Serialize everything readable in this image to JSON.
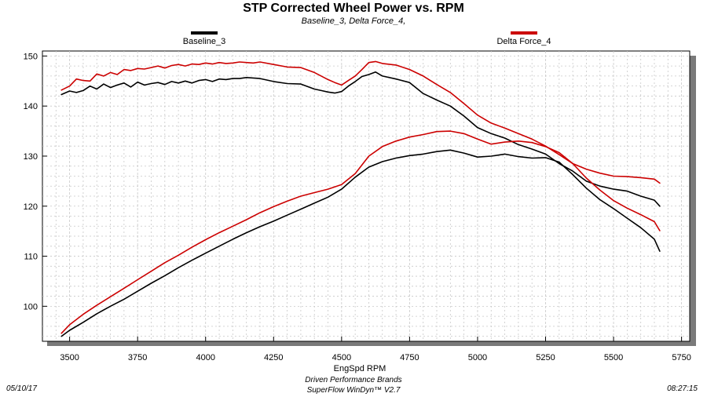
{
  "colors": {
    "baseline": "#000000",
    "delta": "#cc0000",
    "grid": "#c8c8c8",
    "frame_shadow": "#7a7a7a"
  },
  "footer": {
    "date": "05/10/17",
    "time": "08:27:15",
    "company": "Driven Performance Brands",
    "software": "SuperFlow WinDyn™ V2.7"
  },
  "chart_data": {
    "type": "line",
    "title": "STP Corrected Wheel Power vs. RPM",
    "subtitle": "Baseline_3, Delta Force_4,",
    "xlabel": "EngSpd  RPM",
    "ylabel": "",
    "xlim": [
      3400,
      5780
    ],
    "ylim": [
      93,
      151
    ],
    "xticks": [
      3500,
      3750,
      4000,
      4250,
      4500,
      4750,
      5000,
      5250,
      5500,
      5750
    ],
    "yticks": [
      100,
      110,
      120,
      130,
      140,
      150
    ],
    "grid": true,
    "legend_position": "top",
    "series": [
      {
        "name": "Baseline_3",
        "color": "#000000",
        "curves": [
          {
            "x": [
              3470,
              3500,
              3525,
              3550,
              3575,
              3600,
              3625,
              3650,
              3675,
              3700,
              3725,
              3750,
              3775,
              3800,
              3825,
              3850,
              3875,
              3900,
              3925,
              3950,
              3975,
              4000,
              4025,
              4050,
              4075,
              4100,
              4125,
              4150,
              4175,
              4200,
              4250,
              4300,
              4350,
              4400,
              4425,
              4450,
              4475,
              4500,
              4525,
              4550,
              4575,
              4600,
              4625,
              4650,
              4700,
              4750,
              4800,
              4850,
              4900,
              4950,
              5000,
              5050,
              5100,
              5150,
              5200,
              5250,
              5300,
              5350,
              5400,
              5450,
              5500,
              5550,
              5600,
              5650,
              5670
            ],
            "y": [
              142.3,
              143.0,
              142.7,
              143.1,
              144.0,
              143.4,
              144.4,
              143.7,
              144.2,
              144.6,
              143.8,
              144.8,
              144.2,
              144.5,
              144.7,
              144.3,
              144.9,
              144.6,
              145.0,
              144.6,
              145.1,
              145.3,
              144.9,
              145.4,
              145.3,
              145.5,
              145.5,
              145.7,
              145.6,
              145.5,
              144.9,
              144.5,
              144.4,
              143.4,
              143.1,
              142.8,
              142.6,
              142.9,
              144.0,
              144.9,
              145.9,
              146.3,
              146.8,
              146.0,
              145.4,
              144.7,
              142.5,
              141.2,
              140.0,
              138.0,
              135.7,
              134.5,
              133.6,
              132.3,
              131.4,
              130.4,
              128.5,
              127.0,
              125.0,
              124.0,
              123.4,
              123.0,
              122.0,
              121.2,
              120.0
            ]
          },
          {
            "x": [
              3470,
              3500,
              3550,
              3600,
              3650,
              3700,
              3750,
              3800,
              3850,
              3900,
              3950,
              4000,
              4050,
              4100,
              4150,
              4200,
              4250,
              4300,
              4350,
              4400,
              4450,
              4500,
              4550,
              4600,
              4650,
              4700,
              4750,
              4800,
              4850,
              4900,
              4950,
              5000,
              5050,
              5100,
              5150,
              5200,
              5250,
              5300,
              5350,
              5400,
              5450,
              5500,
              5550,
              5600,
              5650,
              5670
            ],
            "y": [
              94.0,
              95.2,
              96.8,
              98.5,
              100.0,
              101.4,
              103.0,
              104.6,
              106.1,
              107.7,
              109.2,
              110.6,
              112.0,
              113.4,
              114.7,
              115.9,
              117.0,
              118.2,
              119.4,
              120.6,
              121.8,
              123.4,
              125.8,
              127.8,
              128.9,
              129.6,
              130.1,
              130.4,
              130.9,
              131.2,
              130.6,
              129.8,
              130.0,
              130.4,
              129.9,
              129.6,
              129.7,
              128.8,
              126.3,
              123.6,
              121.3,
              119.5,
              117.6,
              115.7,
              113.4,
              111.0
            ]
          }
        ]
      },
      {
        "name": "Delta Force_4",
        "color": "#cc0000",
        "curves": [
          {
            "x": [
              3470,
              3500,
              3525,
              3550,
              3575,
              3600,
              3625,
              3650,
              3675,
              3700,
              3725,
              3750,
              3775,
              3800,
              3825,
              3850,
              3875,
              3900,
              3925,
              3950,
              3975,
              4000,
              4025,
              4050,
              4075,
              4100,
              4125,
              4150,
              4175,
              4200,
              4250,
              4300,
              4350,
              4400,
              4425,
              4450,
              4475,
              4500,
              4525,
              4550,
              4575,
              4600,
              4625,
              4650,
              4700,
              4750,
              4800,
              4850,
              4900,
              4950,
              5000,
              5050,
              5100,
              5150,
              5200,
              5250,
              5300,
              5350,
              5400,
              5450,
              5500,
              5550,
              5600,
              5650,
              5670
            ],
            "y": [
              143.2,
              144.0,
              145.4,
              145.1,
              145.0,
              146.4,
              146.0,
              146.7,
              146.3,
              147.3,
              147.1,
              147.5,
              147.4,
              147.7,
              148.0,
              147.6,
              148.1,
              148.3,
              148.0,
              148.4,
              148.3,
              148.6,
              148.4,
              148.7,
              148.5,
              148.6,
              148.8,
              148.7,
              148.6,
              148.8,
              148.3,
              147.8,
              147.7,
              146.7,
              146.0,
              145.3,
              144.7,
              144.2,
              145.1,
              146.0,
              147.3,
              148.7,
              148.9,
              148.5,
              148.2,
              147.3,
              146.0,
              144.3,
              142.7,
              140.5,
              138.2,
              136.6,
              135.6,
              134.5,
              133.4,
              132.0,
              130.3,
              128.5,
              127.4,
              126.6,
              126.0,
              125.9,
              125.7,
              125.4,
              124.6
            ]
          },
          {
            "x": [
              3470,
              3500,
              3550,
              3600,
              3650,
              3700,
              3750,
              3800,
              3850,
              3900,
              3950,
              4000,
              4050,
              4100,
              4150,
              4200,
              4250,
              4300,
              4350,
              4400,
              4450,
              4500,
              4550,
              4600,
              4650,
              4700,
              4750,
              4800,
              4850,
              4900,
              4950,
              5000,
              5050,
              5100,
              5150,
              5200,
              5250,
              5300,
              5350,
              5400,
              5450,
              5500,
              5550,
              5600,
              5650,
              5670
            ],
            "y": [
              94.6,
              96.3,
              98.4,
              100.2,
              101.9,
              103.6,
              105.3,
              107.0,
              108.7,
              110.2,
              111.8,
              113.3,
              114.7,
              116.0,
              117.3,
              118.7,
              119.9,
              121.0,
              122.0,
              122.7,
              123.4,
              124.3,
              126.5,
              130.0,
              131.9,
              133.0,
              133.8,
              134.3,
              134.9,
              135.0,
              134.5,
              133.4,
              132.4,
              132.8,
              133.0,
              132.7,
              131.9,
              130.7,
              128.5,
              125.6,
              123.2,
              121.1,
              119.6,
              118.3,
              116.9,
              115.1
            ]
          }
        ]
      }
    ]
  }
}
